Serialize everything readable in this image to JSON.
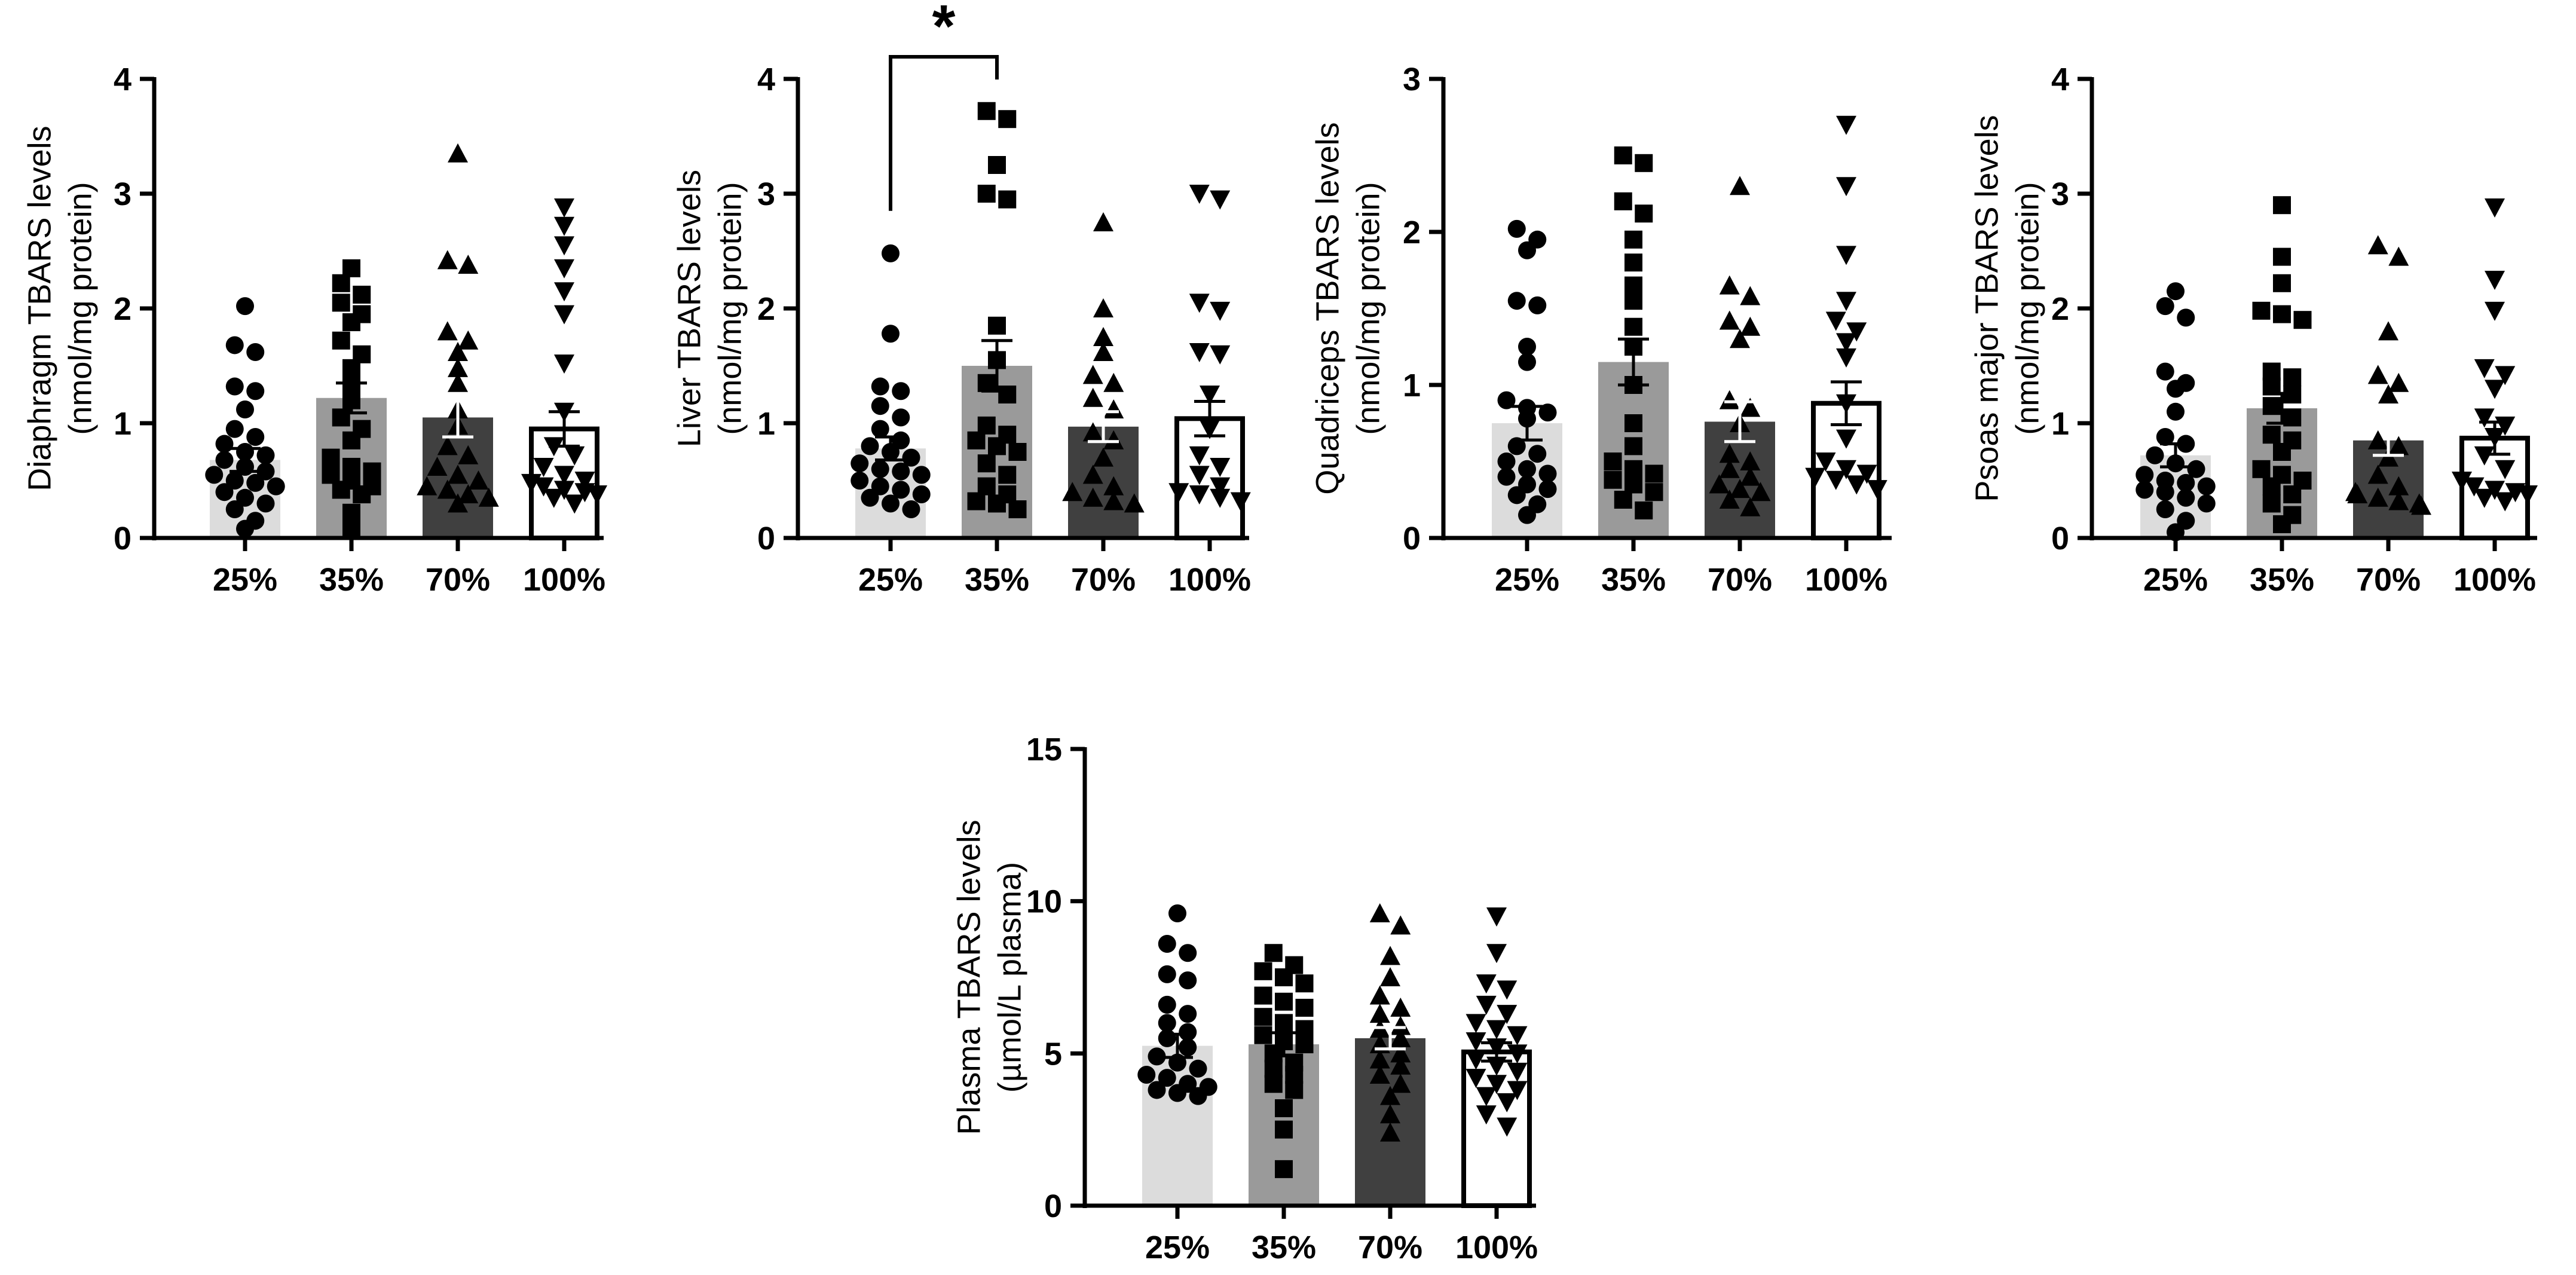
{
  "figure": {
    "colors": {
      "bar_fills": [
        "#dcdcdc",
        "#9a9a9a",
        "#404040",
        "#ffffff"
      ],
      "ink": "#000000"
    },
    "marker_shapes": [
      "circle",
      "square",
      "triangle-up",
      "triangle-down"
    ]
  },
  "chart_data": [
    {
      "type": "bar",
      "panel": "diaphragm",
      "ylabel_line1": "Diaphragm TBARS levels",
      "ylabel_line2": "(nmol/mg protein)",
      "categories": [
        "25%",
        "35%",
        "70%",
        "100%"
      ],
      "ylim": [
        0,
        4
      ],
      "yticks": [
        "0",
        "1",
        "2",
        "3",
        "4"
      ],
      "means": [
        0.68,
        1.22,
        1.05,
        0.95
      ],
      "sem": [
        0.1,
        0.13,
        0.17,
        0.15
      ],
      "points": [
        [
          2.02,
          1.68,
          1.62,
          1.32,
          1.28,
          1.12,
          0.95,
          0.88,
          0.82,
          0.75,
          0.72,
          0.68,
          0.62,
          0.58,
          0.55,
          0.5,
          0.48,
          0.45,
          0.4,
          0.35,
          0.3,
          0.25,
          0.15,
          0.08
        ],
        [
          2.35,
          2.22,
          2.12,
          2.05,
          1.95,
          1.88,
          1.72,
          1.6,
          1.48,
          1.35,
          1.2,
          1.05,
          0.95,
          0.85,
          0.7,
          0.62,
          0.58,
          0.55,
          0.5,
          0.45,
          0.42,
          0.38,
          0.22,
          0.08
        ],
        [
          3.35,
          2.42,
          2.38,
          1.8,
          1.72,
          1.62,
          1.48,
          1.35,
          1.12,
          0.98,
          0.8,
          0.72,
          0.62,
          0.55,
          0.5,
          0.45,
          0.42,
          0.38,
          0.35,
          0.3
        ],
        [
          2.88,
          2.72,
          2.55,
          2.35,
          2.15,
          1.95,
          1.52,
          1.1,
          0.8,
          0.72,
          0.62,
          0.55,
          0.5,
          0.48,
          0.45,
          0.42,
          0.4,
          0.38,
          0.35,
          0.3
        ]
      ]
    },
    {
      "type": "bar",
      "panel": "liver",
      "ylabel_line1": "Liver TBARS levels",
      "ylabel_line2": "(nmol/mg protein)",
      "categories": [
        "25%",
        "35%",
        "70%",
        "100%"
      ],
      "ylim": [
        0,
        4
      ],
      "yticks": [
        "0",
        "1",
        "2",
        "3",
        "4"
      ],
      "means": [
        0.78,
        1.5,
        0.97,
        1.04
      ],
      "sem": [
        0.1,
        0.22,
        0.13,
        0.15
      ],
      "significance": {
        "between": [
          0,
          1
        ],
        "y": 4.2,
        "label": "*"
      },
      "points": [
        [
          2.48,
          1.78,
          1.32,
          1.28,
          1.15,
          1.05,
          0.95,
          0.85,
          0.8,
          0.75,
          0.7,
          0.65,
          0.6,
          0.58,
          0.55,
          0.5,
          0.45,
          0.42,
          0.38,
          0.35,
          0.3,
          0.25
        ],
        [
          3.72,
          3.65,
          3.25,
          3.0,
          2.95,
          1.85,
          1.55,
          1.35,
          1.25,
          0.98,
          0.9,
          0.85,
          0.8,
          0.75,
          0.65,
          0.55,
          0.45,
          0.38,
          0.32,
          0.3,
          0.25
        ],
        [
          2.75,
          2.0,
          1.75,
          1.62,
          1.42,
          1.35,
          1.22,
          1.12,
          0.92,
          0.85,
          0.7,
          0.55,
          0.45,
          0.4,
          0.35,
          0.32,
          0.3
        ],
        [
          3.0,
          2.95,
          2.05,
          1.98,
          1.62,
          1.6,
          1.25,
          0.95,
          0.72,
          0.62,
          0.55,
          0.45,
          0.4,
          0.38,
          0.35,
          0.32
        ]
      ]
    },
    {
      "type": "bar",
      "panel": "quadriceps",
      "ylabel_line1": "Quadriceps TBARS levels",
      "ylabel_line2": "(nmol/mg protein)",
      "categories": [
        "25%",
        "35%",
        "70%",
        "100%"
      ],
      "ylim": [
        0,
        3
      ],
      "yticks": [
        "0",
        "1",
        "2",
        "3"
      ],
      "means": [
        0.75,
        1.15,
        0.76,
        0.88
      ],
      "sem": [
        0.11,
        0.15,
        0.13,
        0.14
      ],
      "points": [
        [
          2.02,
          1.95,
          1.88,
          1.55,
          1.52,
          1.25,
          1.15,
          0.9,
          0.85,
          0.82,
          0.78,
          0.6,
          0.55,
          0.5,
          0.45,
          0.42,
          0.4,
          0.35,
          0.32,
          0.28,
          0.22,
          0.15
        ],
        [
          2.5,
          2.45,
          2.2,
          2.12,
          1.95,
          1.8,
          1.65,
          1.55,
          1.38,
          1.25,
          1.0,
          0.75,
          0.6,
          0.5,
          0.45,
          0.42,
          0.38,
          0.35,
          0.3,
          0.25,
          0.18
        ],
        [
          2.3,
          1.65,
          1.58,
          1.42,
          1.38,
          1.3,
          0.9,
          0.85,
          0.75,
          0.55,
          0.5,
          0.45,
          0.4,
          0.35,
          0.32,
          0.3,
          0.25,
          0.2
        ],
        [
          2.7,
          2.3,
          1.85,
          1.55,
          1.42,
          1.35,
          1.28,
          1.18,
          0.88,
          0.65,
          0.5,
          0.45,
          0.42,
          0.4,
          0.38,
          0.35,
          0.32
        ]
      ]
    },
    {
      "type": "bar",
      "panel": "psoas",
      "ylabel_line1": "Psoas major TBARS levels",
      "ylabel_line2": "(nmol/mg protein)",
      "categories": [
        "25%",
        "35%",
        "70%",
        "100%"
      ],
      "ylim": [
        0,
        4
      ],
      "yticks": [
        "0",
        "1",
        "2",
        "3",
        "4"
      ],
      "means": [
        0.72,
        1.13,
        0.85,
        0.87
      ],
      "sem": [
        0.1,
        0.13,
        0.13,
        0.14
      ],
      "points": [
        [
          2.15,
          2.02,
          1.92,
          1.45,
          1.35,
          1.3,
          1.1,
          0.88,
          0.82,
          0.72,
          0.65,
          0.6,
          0.55,
          0.5,
          0.48,
          0.45,
          0.42,
          0.4,
          0.35,
          0.3,
          0.25,
          0.15,
          0.05
        ],
        [
          2.9,
          2.45,
          2.22,
          1.98,
          1.95,
          1.9,
          1.45,
          1.4,
          1.32,
          1.25,
          1.15,
          1.05,
          0.9,
          0.85,
          0.75,
          0.6,
          0.55,
          0.5,
          0.45,
          0.38,
          0.3,
          0.2,
          0.12
        ],
        [
          2.55,
          2.45,
          1.8,
          1.42,
          1.35,
          1.25,
          0.85,
          0.8,
          0.7,
          0.55,
          0.45,
          0.4,
          0.38,
          0.35,
          0.32,
          0.3,
          0.28
        ],
        [
          2.88,
          2.25,
          1.98,
          1.48,
          1.42,
          1.3,
          1.05,
          0.98,
          0.88,
          0.72,
          0.6,
          0.5,
          0.45,
          0.42,
          0.4,
          0.38,
          0.35,
          0.32
        ]
      ]
    },
    {
      "type": "bar",
      "panel": "plasma",
      "ylabel_line1": "Plasma TBARS levels",
      "ylabel_line2": "(µmol/L plasma)",
      "categories": [
        "25%",
        "35%",
        "70%",
        "100%"
      ],
      "ylim": [
        0,
        15
      ],
      "yticks": [
        "0",
        "5",
        "10",
        "15"
      ],
      "means": [
        5.25,
        5.3,
        5.5,
        5.05
      ],
      "sem": [
        0.38,
        0.38,
        0.35,
        0.3
      ],
      "points": [
        [
          9.6,
          8.6,
          8.3,
          7.6,
          7.4,
          6.6,
          6.3,
          6.0,
          5.7,
          5.5,
          5.2,
          4.9,
          4.7,
          4.5,
          4.3,
          4.2,
          4.0,
          3.9,
          3.8,
          3.7,
          3.6
        ],
        [
          8.3,
          7.9,
          7.7,
          7.5,
          7.3,
          6.9,
          6.7,
          6.5,
          6.2,
          6.0,
          5.8,
          5.6,
          5.4,
          5.3,
          5.0,
          4.7,
          4.5,
          4.3,
          4.0,
          3.8,
          3.2,
          2.5,
          1.2
        ],
        [
          9.6,
          9.2,
          8.2,
          7.5,
          6.9,
          6.5,
          6.3,
          5.9,
          5.8,
          5.5,
          5.3,
          5.0,
          4.8,
          4.6,
          4.3,
          4.0,
          3.6,
          3.0,
          2.4
        ],
        [
          9.5,
          8.3,
          7.3,
          7.1,
          6.6,
          6.3,
          6.0,
          5.8,
          5.6,
          5.4,
          5.2,
          5.0,
          4.8,
          4.6,
          4.4,
          4.2,
          4.0,
          3.8,
          3.6,
          3.4,
          3.0,
          2.6
        ]
      ]
    }
  ]
}
